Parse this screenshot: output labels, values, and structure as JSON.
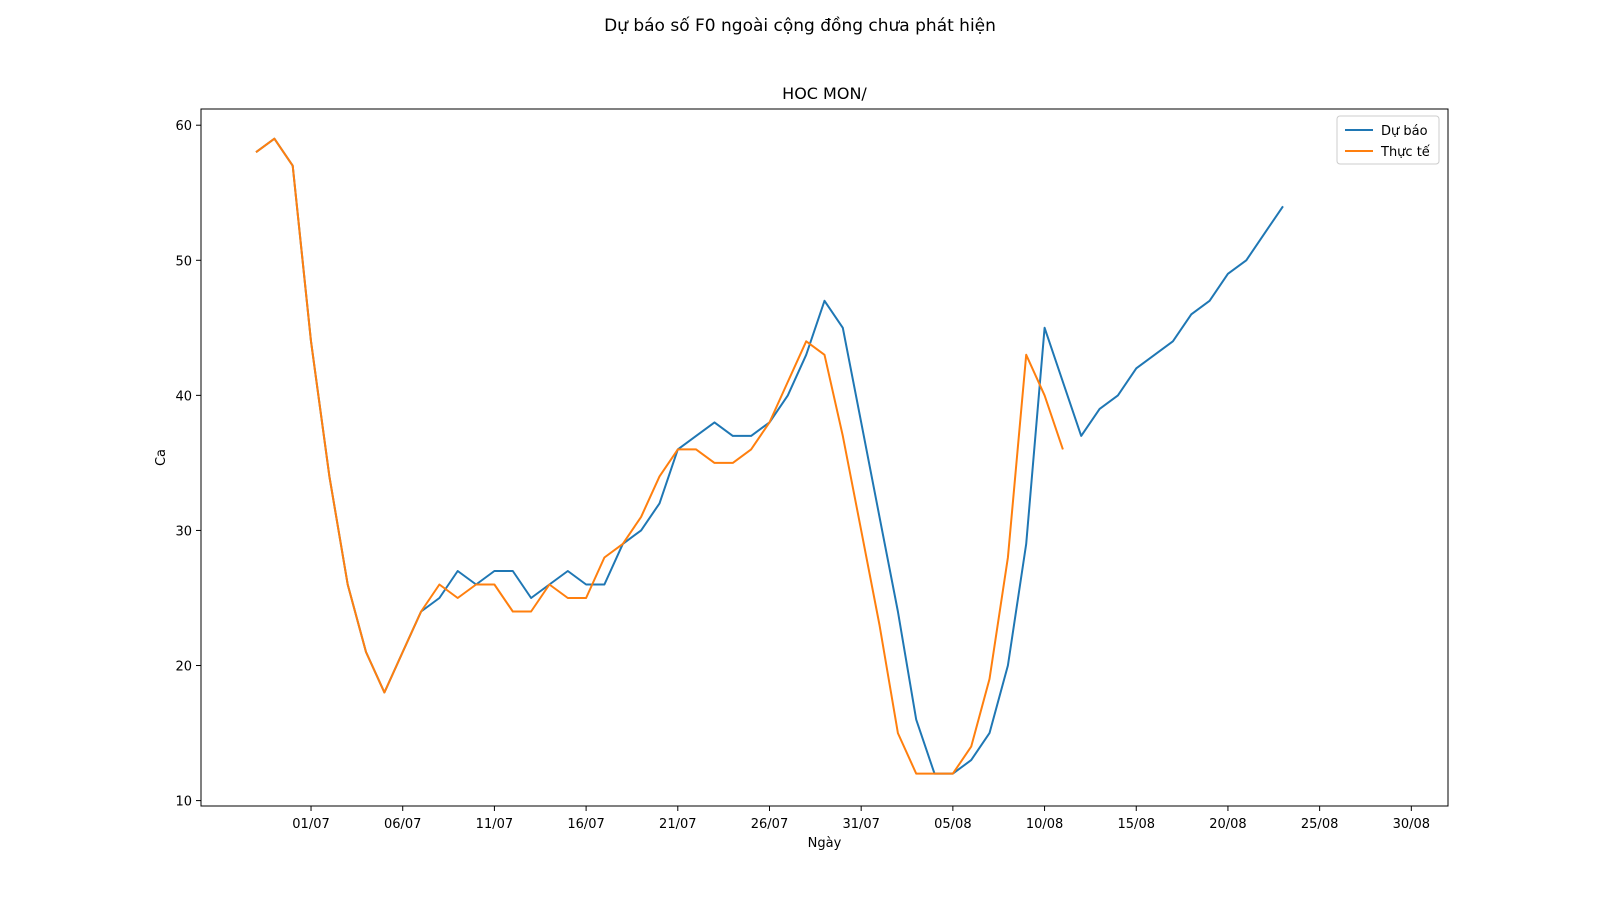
{
  "figure": {
    "suptitle": "Dự báo số F0 ngoài cộng đồng chưa phát hiện"
  },
  "chart_data": {
    "type": "line",
    "title": "HOC MON/",
    "xlabel": "Ngày",
    "ylabel": "Ca",
    "x_start": "2021-06-28",
    "xlim": [
      "2021-06-25",
      "2021-09-01"
    ],
    "ylim": [
      9.6,
      61.2
    ],
    "x_ticks": [
      {
        "date": "2021-07-01",
        "label": "01/07"
      },
      {
        "date": "2021-07-06",
        "label": "06/07"
      },
      {
        "date": "2021-07-11",
        "label": "11/07"
      },
      {
        "date": "2021-07-16",
        "label": "16/07"
      },
      {
        "date": "2021-07-21",
        "label": "21/07"
      },
      {
        "date": "2021-07-26",
        "label": "26/07"
      },
      {
        "date": "2021-07-31",
        "label": "31/07"
      },
      {
        "date": "2021-08-05",
        "label": "05/08"
      },
      {
        "date": "2021-08-10",
        "label": "10/08"
      },
      {
        "date": "2021-08-15",
        "label": "15/08"
      },
      {
        "date": "2021-08-20",
        "label": "20/08"
      },
      {
        "date": "2021-08-25",
        "label": "25/08"
      },
      {
        "date": "2021-08-30",
        "label": "30/08"
      }
    ],
    "y_ticks": [
      10,
      20,
      30,
      40,
      50,
      60
    ],
    "legend_position": "top-right",
    "grid": false,
    "series": [
      {
        "name": "Dự báo",
        "color": "#1f77b4",
        "values": [
          58,
          59,
          57,
          44,
          34,
          26,
          21,
          18,
          21,
          24,
          25,
          27,
          26,
          27,
          27,
          25,
          26,
          27,
          26,
          26,
          29,
          30,
          32,
          36,
          37,
          38,
          37,
          37,
          38,
          40,
          43,
          47,
          45,
          38,
          31,
          24,
          16,
          12,
          12,
          13,
          15,
          20,
          29,
          45,
          41,
          37,
          39,
          40,
          42,
          43,
          44,
          46,
          47,
          49,
          50,
          52,
          54
        ]
      },
      {
        "name": "Thực tế",
        "color": "#ff7f0e",
        "values": [
          58,
          59,
          57,
          44,
          34,
          26,
          21,
          18,
          21,
          24,
          26,
          25,
          26,
          26,
          24,
          24,
          26,
          25,
          25,
          28,
          29,
          31,
          34,
          36,
          36,
          35,
          35,
          36,
          38,
          41,
          44,
          43,
          37,
          30,
          23,
          15,
          12,
          12,
          12,
          14,
          19,
          28,
          43,
          40,
          36
        ]
      }
    ]
  }
}
